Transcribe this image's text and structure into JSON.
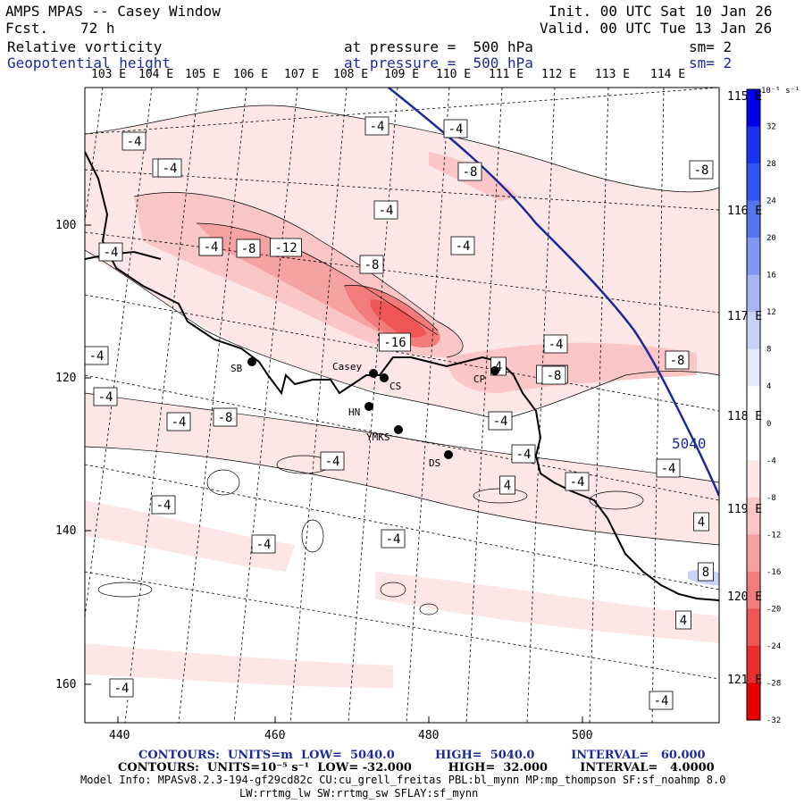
{
  "header": {
    "title": "AMPS MPAS -- Casey Window",
    "fcst_label": "Fcst.",
    "fcst_value": "72 h",
    "init": "Init. 00 UTC Sat 10 Jan 26",
    "valid": "Valid. 00 UTC Tue 13 Jan 26",
    "field1_name": "Relative vorticity",
    "field1_pressure": "at pressure =  500 hPa",
    "field1_sm": "sm= 2",
    "field2_name": "Geopotential height",
    "field2_pressure": "at pressure =  500 hPa",
    "field2_sm": "sm= 2"
  },
  "lon_top_labels": [
    "103 E",
    "104 E",
    "105 E",
    "106 E",
    "107 E",
    "108 E",
    "109 E",
    "110 E",
    "111 E",
    "112 E",
    "113 E",
    "114 E"
  ],
  "lat_right_labels": [
    "115 E",
    "116 E",
    "117 E",
    "118 E",
    "119 E",
    "120 E",
    "121 E"
  ],
  "x_ticks": [
    "440",
    "460",
    "480",
    "500"
  ],
  "y_ticks": [
    "100",
    "120",
    "140",
    "160"
  ],
  "colorbar": {
    "unit_label": "10⁻⁵ s⁻¹",
    "ticks": [
      "32",
      "28",
      "24",
      "20",
      "16",
      "12",
      "8",
      "4",
      "0",
      "-4",
      "-8",
      "-12",
      "-16",
      "-20",
      "-24",
      "-28",
      "-32"
    ],
    "colors": [
      "#0000ee",
      "#1a33ee",
      "#3355ee",
      "#5577ee",
      "#7f97f0",
      "#a7b6f2",
      "#c8d2f6",
      "#e3e8fa",
      "#ffffff",
      "#ffffff",
      "#fde6e6",
      "#fac6c6",
      "#f6a2a2",
      "#f27c7c",
      "#ee5656",
      "#ea2e2e",
      "#e60000"
    ]
  },
  "stations": [
    {
      "name": "SB"
    },
    {
      "name": "Casey"
    },
    {
      "name": "CS"
    },
    {
      "name": "HN"
    },
    {
      "name": "YMKS"
    },
    {
      "name": "DS"
    },
    {
      "name": "CP"
    }
  ],
  "height_contour_label": "5040",
  "contour_labels": [
    "-4",
    "-4",
    "-4",
    "-8",
    "-8",
    "-4",
    "-4",
    "-4",
    "-8",
    "-12",
    "-8",
    "-4",
    "-16",
    "-4",
    "-4",
    "-12",
    "-8",
    "4",
    "-4",
    "-4",
    "-8",
    "-4",
    "-4",
    "-4",
    "-4",
    "-4",
    "4",
    "-4",
    "4",
    "-4",
    "-4",
    "8",
    "4",
    "-4",
    "-4",
    "-8",
    "-4",
    "-4",
    "-8"
  ],
  "footer": {
    "line1": "CONTOURS:  UNITS=m  LOW=  5040.0          HIGH=  5040.0         INTERVAL=   60.000",
    "line2": "CONTOURS:  UNITS=10⁻⁵ s⁻¹  LOW= -32.000         HIGH=  32.000        INTERVAL=   4.0000",
    "line3": "Model Info: MPASv8.2.3-194-gf29cd82c CU:cu_grell_freitas PBL:bl_mynn MP:mp_thompson SF:sf_noahmp 8.0",
    "line4": "LW:rrtmg_lw SW:rrtmg_sw SFLAY:sf_mynn"
  },
  "colors": {
    "height_contour": "#1a2a9a",
    "header_blue": "#1a2a9a"
  }
}
